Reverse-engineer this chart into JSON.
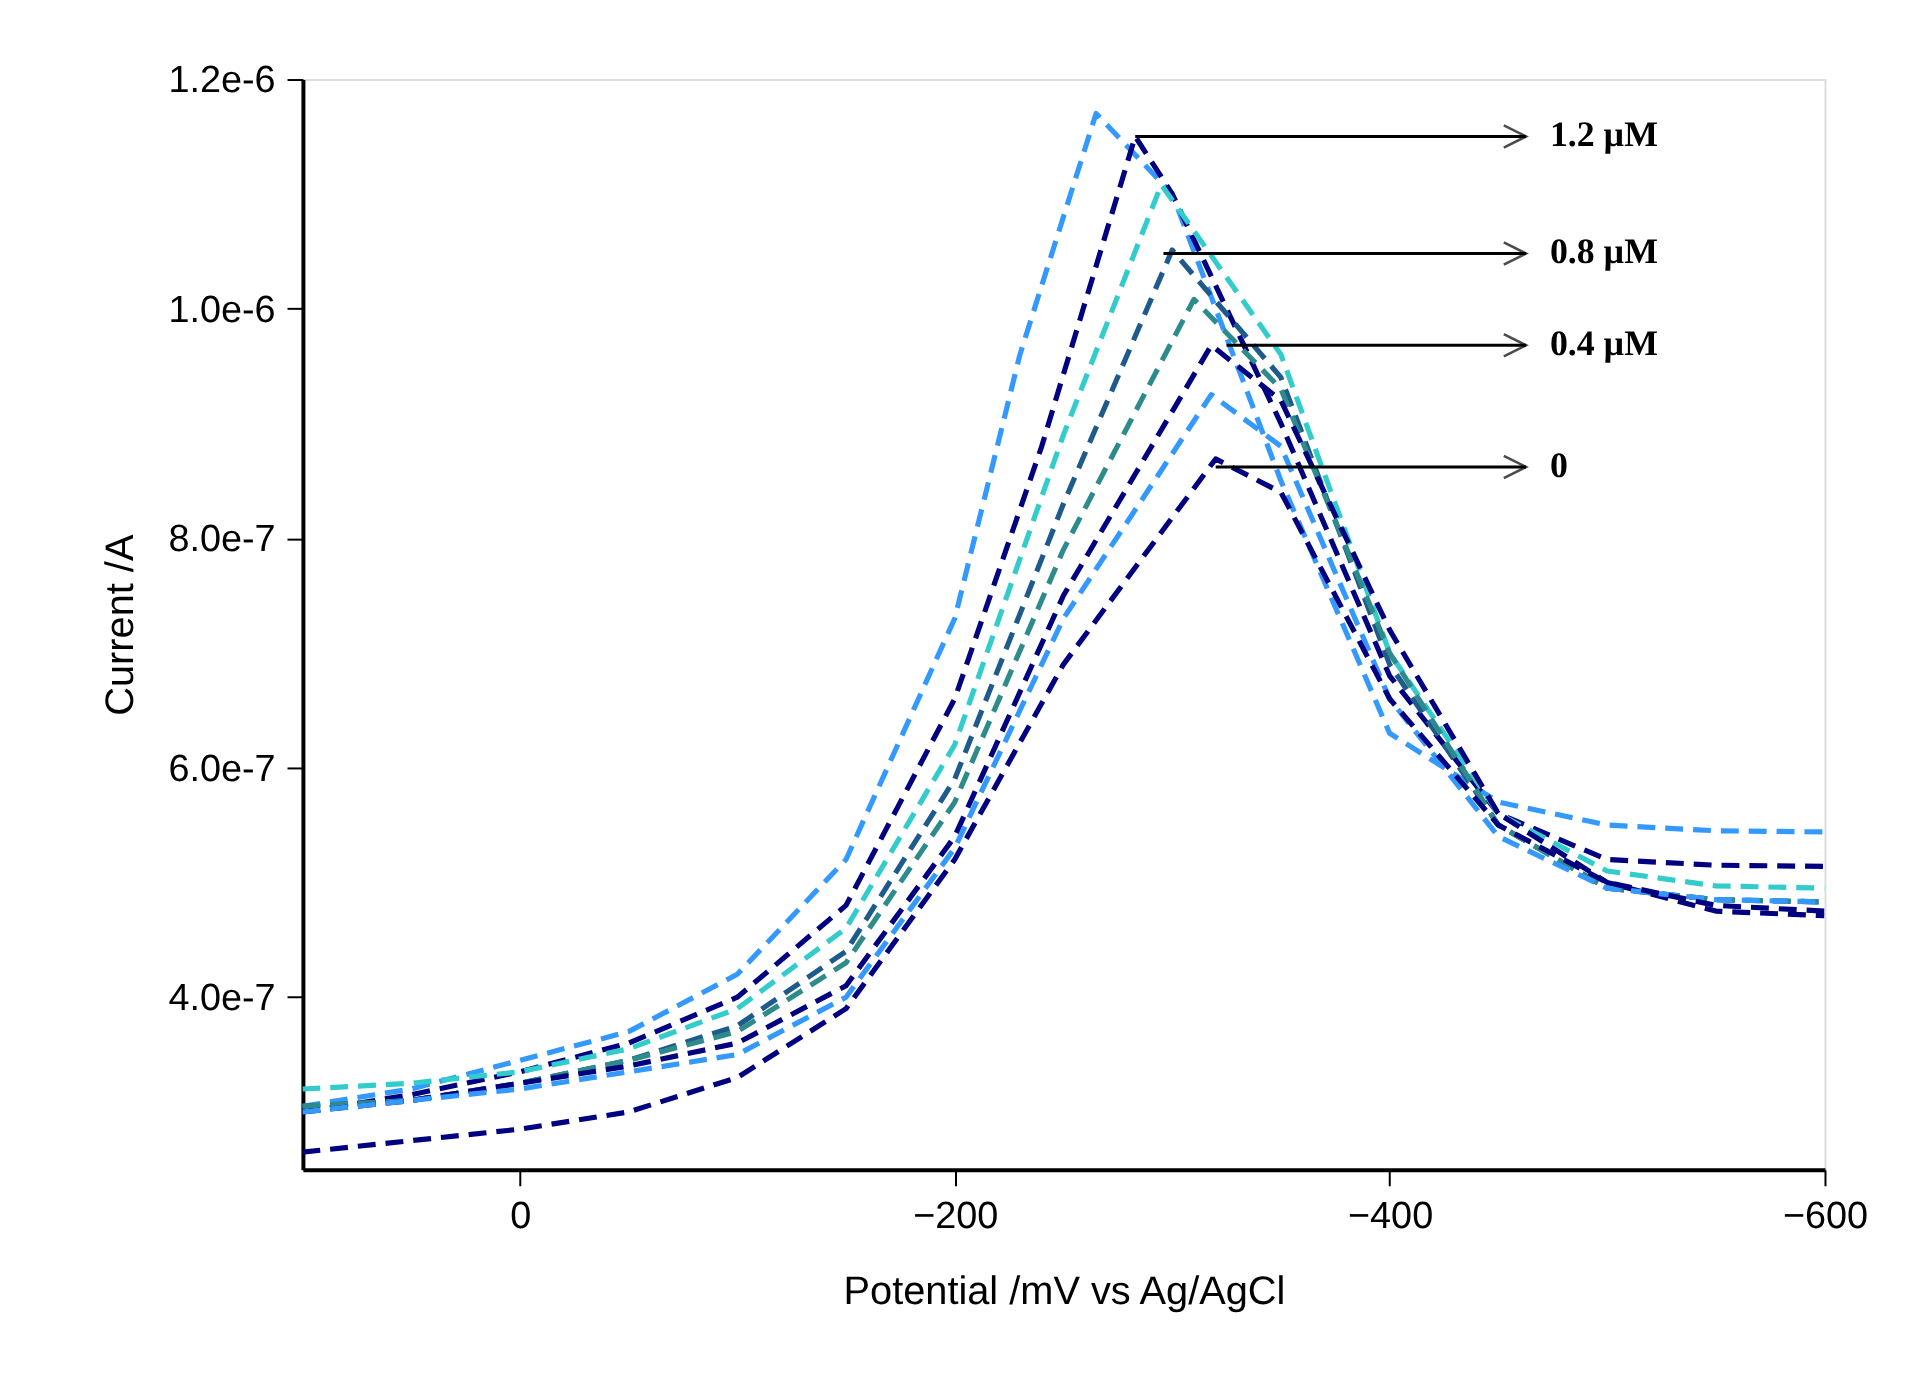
{
  "chart_data": {
    "type": "line",
    "xlabel": "Potential /mV vs Ag/AgCl",
    "ylabel": "Current /A",
    "xlim": [
      100,
      -600
    ],
    "xticks": [
      0,
      -200,
      -400,
      -600
    ],
    "ylim": [
      2.5e-07,
      1.2e-06
    ],
    "yticks": [
      {
        "value": 4e-07,
        "label": "4.0e-7"
      },
      {
        "value": 6e-07,
        "label": "6.0e-7"
      },
      {
        "value": 8e-07,
        "label": "8.0e-7"
      },
      {
        "value": 1e-06,
        "label": "1.0e-6"
      },
      {
        "value": 1.2e-06,
        "label": "1.2e-6"
      }
    ],
    "grid": false,
    "marker": "none",
    "line_style": "dashed",
    "series": [
      {
        "color": "#3399ff",
        "x": [
          100,
          50,
          0,
          -50,
          -100,
          -150,
          -200,
          -230,
          -265,
          -300,
          -350,
          -400,
          -450,
          -500,
          -550,
          -600
        ],
        "values": [
          3.05e-07,
          3.2e-07,
          3.45e-07,
          3.7e-07,
          4.2e-07,
          5.2e-07,
          7.3e-07,
          9.6e-07,
          1.17e-06,
          1.1e-06,
          8.5e-07,
          6.3e-07,
          5.7e-07,
          5.5e-07,
          5.45e-07,
          5.44e-07
        ]
      },
      {
        "color": "#000080",
        "x": [
          100,
          50,
          0,
          -50,
          -100,
          -150,
          -200,
          -240,
          -283,
          -300,
          -350,
          -400,
          -450,
          -500,
          -550,
          -600
        ],
        "values": [
          3e-07,
          3.15e-07,
          3.35e-07,
          3.6e-07,
          4e-07,
          4.8e-07,
          6.6e-07,
          8.8e-07,
          1.15e-06,
          1.1e-06,
          9e-07,
          6.8e-07,
          5.6e-07,
          5.2e-07,
          5.15e-07,
          5.14e-07
        ]
      },
      {
        "color": "#33cccc",
        "x": [
          100,
          50,
          0,
          -50,
          -100,
          -150,
          -200,
          -250,
          -295,
          -350,
          -400,
          -450,
          -500,
          -550,
          -600
        ],
        "values": [
          3.2e-07,
          3.25e-07,
          3.35e-07,
          3.55e-07,
          3.9e-07,
          4.6e-07,
          6.2e-07,
          8.9e-07,
          1.108e-06,
          9.6e-07,
          7e-07,
          5.6e-07,
          5.1e-07,
          4.97e-07,
          4.95e-07
        ]
      },
      {
        "color": "#1f5a8c",
        "x": [
          100,
          50,
          0,
          -50,
          -100,
          -150,
          -200,
          -250,
          -300,
          -350,
          -400,
          -450,
          -500,
          -550,
          -600
        ],
        "values": [
          3.05e-07,
          3.1e-07,
          3.25e-07,
          3.45e-07,
          3.75e-07,
          4.4e-07,
          5.9e-07,
          8.3e-07,
          1.051e-06,
          9.4e-07,
          6.9e-07,
          5.5e-07,
          4.95e-07,
          4.85e-07,
          4.83e-07
        ]
      },
      {
        "color": "#2e8b8b",
        "x": [
          100,
          50,
          0,
          -50,
          -100,
          -150,
          -200,
          -250,
          -310,
          -350,
          -400,
          -450,
          -500,
          -550,
          -600
        ],
        "values": [
          3.05e-07,
          3.1e-07,
          3.25e-07,
          3.45e-07,
          3.7e-07,
          4.3e-07,
          5.7e-07,
          7.9e-07,
          1.008e-06,
          9.3e-07,
          7e-07,
          5.5e-07,
          4.95e-07,
          4.85e-07,
          4.83e-07
        ]
      },
      {
        "color": "#000080",
        "x": [
          100,
          50,
          0,
          -50,
          -100,
          -150,
          -200,
          -250,
          -318,
          -350,
          -400,
          -450,
          -500,
          -550,
          -600
        ],
        "values": [
          3e-07,
          3.1e-07,
          3.25e-07,
          3.4e-07,
          3.6e-07,
          4.1e-07,
          5.4e-07,
          7.5e-07,
          9.68e-07,
          9.2e-07,
          7.2e-07,
          5.6e-07,
          5e-07,
          4.75e-07,
          4.71e-07
        ]
      },
      {
        "color": "#3399ff",
        "x": [
          100,
          50,
          0,
          -50,
          -100,
          -150,
          -200,
          -250,
          -318,
          -350,
          -400,
          -450,
          -500,
          -550,
          -600
        ],
        "values": [
          3e-07,
          3.1e-07,
          3.2e-07,
          3.35e-07,
          3.5e-07,
          4e-07,
          5.3e-07,
          7.3e-07,
          9.25e-07,
          8.8e-07,
          6.6e-07,
          5.4e-07,
          4.95e-07,
          4.85e-07,
          4.83e-07
        ]
      },
      {
        "color": "#000080",
        "x": [
          100,
          50,
          0,
          -50,
          -100,
          -150,
          -200,
          -250,
          -320,
          -350,
          -400,
          -450,
          -500,
          -550,
          -600
        ],
        "values": [
          2.65e-07,
          2.75e-07,
          2.85e-07,
          3e-07,
          3.3e-07,
          3.9e-07,
          5.2e-07,
          6.9e-07,
          8.69e-07,
          8.4e-07,
          6.6e-07,
          5.5e-07,
          5e-07,
          4.8e-07,
          4.75e-07
        ]
      }
    ],
    "annotations": [
      {
        "text": "1.2 µM",
        "x": -283,
        "y": 1.15e-06
      },
      {
        "text": "0.8 µM",
        "x": -296,
        "y": 1.048e-06
      },
      {
        "text": "0.4 µM",
        "x": -325,
        "y": 9.68e-07
      },
      {
        "text": "0",
        "x": -320,
        "y": 8.62e-07
      }
    ]
  }
}
